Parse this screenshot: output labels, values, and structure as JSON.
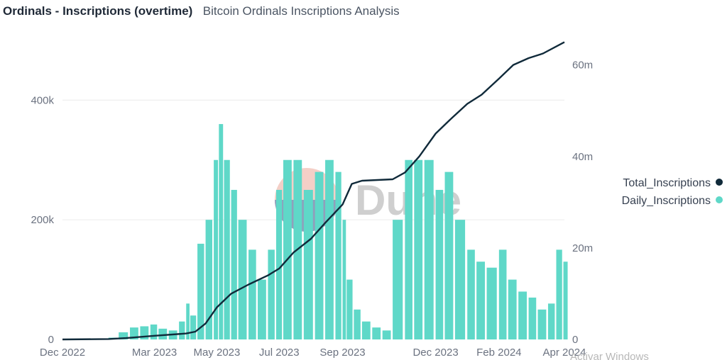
{
  "header": {
    "title": "Ordinals - Inscriptions (overtime)",
    "subtitle": "Bitcoin Ordinals Inscriptions Analysis"
  },
  "watermark": {
    "text": "Dune"
  },
  "os_overlay": {
    "text": "Activar Windows"
  },
  "colors": {
    "bar": "#5fd8c8",
    "line": "#102a3a",
    "grid": "#ececec"
  },
  "chart_data": {
    "type": "bar",
    "x_tick_labels": [
      "Dec 2022",
      "Mar 2023",
      "May 2023",
      "Jul 2023",
      "Sep 2023",
      "Dec 2023",
      "Feb 2024",
      "Apr 2024"
    ],
    "x_range": [
      "2022-12-01",
      "2024-04-05"
    ],
    "y_left": {
      "ticks": [
        0,
        200000,
        400000
      ],
      "tick_labels": [
        "0",
        "200k",
        "400k"
      ],
      "range": [
        0,
        520000
      ]
    },
    "y_right": {
      "ticks": [
        0,
        20000000,
        40000000,
        60000000
      ],
      "tick_labels": [
        "0",
        "20m",
        "40m",
        "60m"
      ],
      "range": [
        0,
        68000000
      ]
    },
    "legend": {
      "position": "right",
      "entries": [
        "Total_Inscriptions",
        "Daily_Inscriptions"
      ]
    },
    "series": [
      {
        "name": "Daily_Inscriptions",
        "axis": "left",
        "kind": "bar",
        "points": [
          [
            "2022-12-01",
            0
          ],
          [
            "2022-12-15",
            0
          ],
          [
            "2023-01-01",
            0
          ],
          [
            "2023-01-15",
            3000
          ],
          [
            "2023-01-25",
            12000
          ],
          [
            "2023-02-05",
            20000
          ],
          [
            "2023-02-15",
            22000
          ],
          [
            "2023-02-25",
            25000
          ],
          [
            "2023-03-05",
            18000
          ],
          [
            "2023-03-15",
            15000
          ],
          [
            "2023-03-25",
            30000
          ],
          [
            "2023-04-01",
            60000
          ],
          [
            "2023-04-05",
            40000
          ],
          [
            "2023-04-12",
            160000
          ],
          [
            "2023-04-20",
            200000
          ],
          [
            "2023-04-28",
            300000
          ],
          [
            "2023-05-03",
            360000
          ],
          [
            "2023-05-08",
            300000
          ],
          [
            "2023-05-15",
            250000
          ],
          [
            "2023-05-22",
            200000
          ],
          [
            "2023-06-01",
            150000
          ],
          [
            "2023-06-10",
            100000
          ],
          [
            "2023-06-20",
            150000
          ],
          [
            "2023-06-28",
            250000
          ],
          [
            "2023-07-05",
            300000
          ],
          [
            "2023-07-15",
            300000
          ],
          [
            "2023-07-25",
            250000
          ],
          [
            "2023-08-05",
            280000
          ],
          [
            "2023-08-15",
            300000
          ],
          [
            "2023-08-25",
            280000
          ],
          [
            "2023-09-01",
            200000
          ],
          [
            "2023-09-05",
            100000
          ],
          [
            "2023-09-12",
            50000
          ],
          [
            "2023-09-20",
            30000
          ],
          [
            "2023-09-30",
            20000
          ],
          [
            "2023-10-10",
            15000
          ],
          [
            "2023-10-20",
            200000
          ],
          [
            "2023-11-01",
            300000
          ],
          [
            "2023-11-10",
            300000
          ],
          [
            "2023-11-20",
            300000
          ],
          [
            "2023-12-01",
            250000
          ],
          [
            "2023-12-10",
            280000
          ],
          [
            "2023-12-20",
            200000
          ],
          [
            "2024-01-01",
            150000
          ],
          [
            "2024-01-10",
            130000
          ],
          [
            "2024-01-20",
            120000
          ],
          [
            "2024-02-01",
            150000
          ],
          [
            "2024-02-10",
            100000
          ],
          [
            "2024-02-20",
            80000
          ],
          [
            "2024-03-01",
            70000
          ],
          [
            "2024-03-10",
            50000
          ],
          [
            "2024-03-20",
            60000
          ],
          [
            "2024-03-28",
            150000
          ],
          [
            "2024-04-04",
            130000
          ]
        ]
      },
      {
        "name": "Total_Inscriptions",
        "axis": "right",
        "kind": "line",
        "points": [
          [
            "2022-12-01",
            0
          ],
          [
            "2023-01-15",
            100000
          ],
          [
            "2023-02-01",
            300000
          ],
          [
            "2023-03-01",
            800000
          ],
          [
            "2023-04-01",
            1300000
          ],
          [
            "2023-04-10",
            1700000
          ],
          [
            "2023-04-20",
            3500000
          ],
          [
            "2023-05-01",
            7000000
          ],
          [
            "2023-05-15",
            10000000
          ],
          [
            "2023-06-01",
            12000000
          ],
          [
            "2023-06-20",
            14000000
          ],
          [
            "2023-07-01",
            15500000
          ],
          [
            "2023-07-15",
            19000000
          ],
          [
            "2023-08-01",
            22000000
          ],
          [
            "2023-08-15",
            25500000
          ],
          [
            "2023-09-01",
            29500000
          ],
          [
            "2023-09-10",
            34000000
          ],
          [
            "2023-09-20",
            34700000
          ],
          [
            "2023-10-20",
            35000000
          ],
          [
            "2023-11-01",
            36500000
          ],
          [
            "2023-11-15",
            40000000
          ],
          [
            "2023-12-01",
            45000000
          ],
          [
            "2023-12-15",
            48000000
          ],
          [
            "2024-01-01",
            51500000
          ],
          [
            "2024-01-15",
            53500000
          ],
          [
            "2024-02-01",
            57000000
          ],
          [
            "2024-02-15",
            60000000
          ],
          [
            "2024-03-01",
            61500000
          ],
          [
            "2024-03-15",
            62500000
          ],
          [
            "2024-04-05",
            65000000
          ]
        ]
      }
    ]
  }
}
